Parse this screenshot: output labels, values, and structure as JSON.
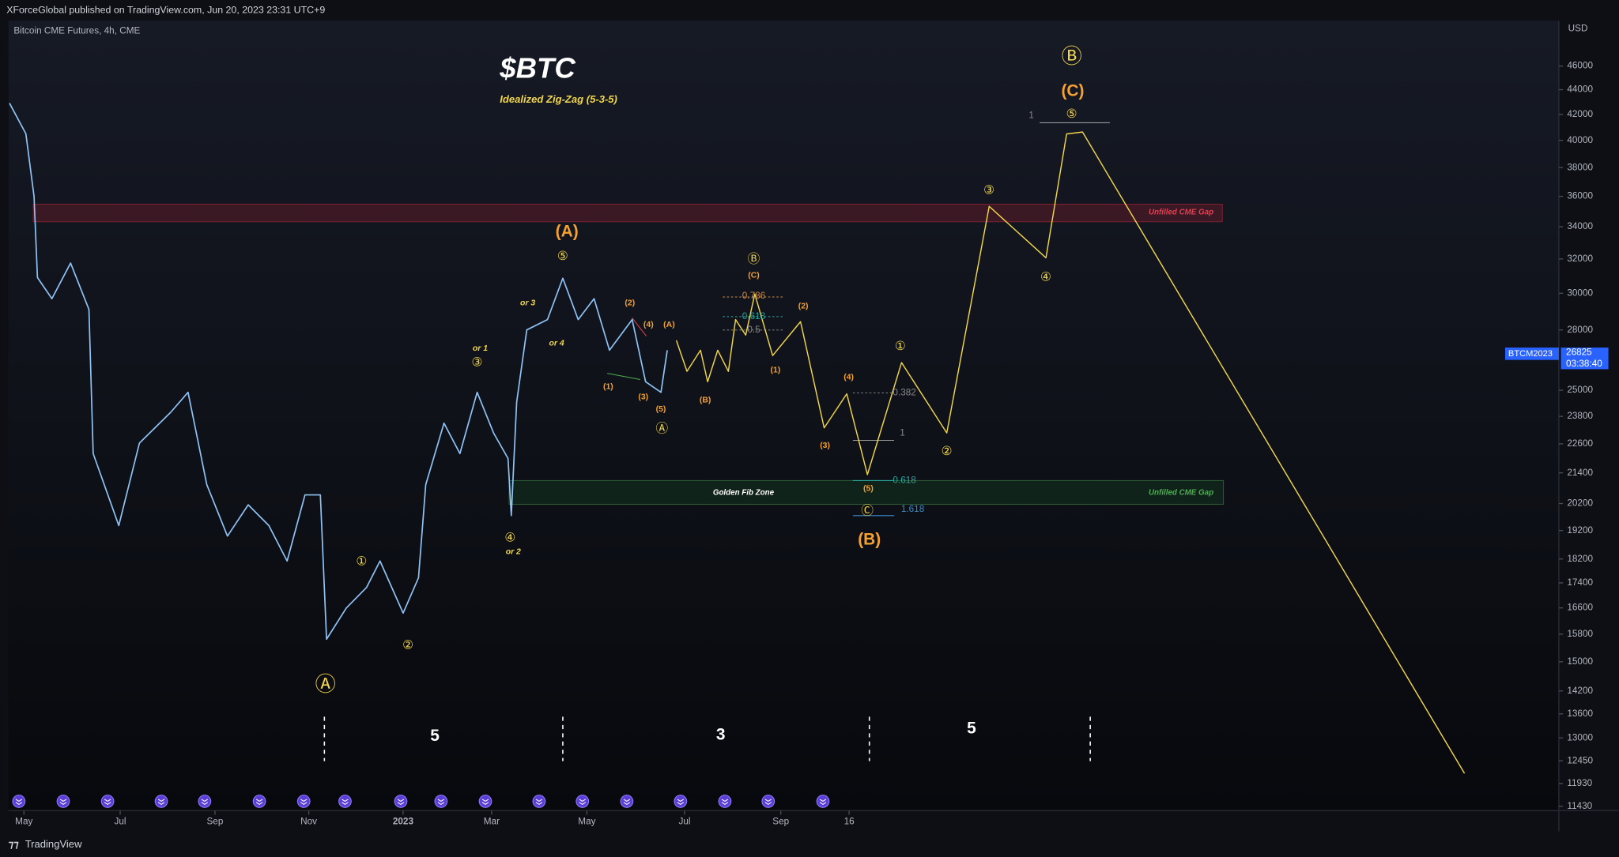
{
  "header": {
    "published": "XForceGlobal published on TradingView.com, Jun 20, 2023 23:31 UTC+9",
    "instrument": "Bitcoin CME Futures, 4h, CME",
    "currency": "USD"
  },
  "footer": {
    "brand": "TradingView"
  },
  "price_tag": {
    "symbol": "BTCM2023",
    "price": "26825",
    "countdown": "03:38:40"
  },
  "chart_data": {
    "type": "line",
    "title": "$BTC",
    "subtitle": "Idealized Zig-Zag (5-3-5)",
    "log_scale": true,
    "grid": false,
    "xlim": [
      -0.32,
      31.9
    ],
    "xticks": [
      {
        "value": 0,
        "label": "May"
      },
      {
        "value": 2.0,
        "label": "Jul"
      },
      {
        "value": 3.97,
        "label": "Sep"
      },
      {
        "value": 5.92,
        "label": "Nov"
      },
      {
        "value": 7.88,
        "label": "2023"
      },
      {
        "value": 9.72,
        "label": "Mar"
      },
      {
        "value": 11.7,
        "label": "May"
      },
      {
        "value": 13.73,
        "label": "Jul"
      },
      {
        "value": 15.73,
        "label": "Sep"
      },
      {
        "value": 17.15,
        "label": "16"
      }
    ],
    "ylim": [
      11360,
      50100
    ],
    "yticks": [
      46000,
      44000,
      42000,
      40000,
      38000,
      36000,
      34000,
      32000,
      30000,
      28000,
      25000,
      23800,
      22600,
      21400,
      20200,
      19200,
      18200,
      17400,
      16600,
      15800,
      15000,
      14200,
      13600,
      13000,
      12450,
      11930,
      11430
    ],
    "series": [
      {
        "name": "BTCM2023",
        "color": "#8fc3f5",
        "x": [
          -0.3,
          0.04,
          0.21,
          0.28,
          0.58,
          0.97,
          1.35,
          1.44,
          1.97,
          2.4,
          3.05,
          3.41,
          3.8,
          4.23,
          4.66,
          5.09,
          5.47,
          5.84,
          6.16,
          6.29,
          6.7,
          7.12,
          7.4,
          7.88,
          8.2,
          8.35,
          8.73,
          9.06,
          9.42,
          9.76,
          10.06,
          10.13,
          10.24,
          10.45,
          10.88,
          11.2,
          11.52,
          11.85,
          12.17,
          12.64,
          12.92,
          13.24,
          13.37
        ],
        "values": [
          42900,
          40500,
          36000,
          30900,
          29700,
          31750,
          29100,
          22190,
          19380,
          22630,
          23980,
          24900,
          20930,
          19000,
          20150,
          19380,
          18130,
          20530,
          20530,
          15650,
          16600,
          17250,
          18130,
          16440,
          17570,
          20930,
          23500,
          22190,
          24900,
          23070,
          21990,
          19750,
          24450,
          28000,
          28550,
          30860,
          28550,
          29700,
          26950,
          28550,
          25400,
          24900,
          26950
        ]
      },
      {
        "color": "#f2d64b",
        "x": [
          13.56,
          13.78,
          14.06,
          14.21,
          14.42,
          14.64,
          14.79,
          15.0,
          15.19,
          15.56,
          16.14,
          16.63,
          17.1,
          17.53,
          18.24,
          19.18,
          20.06,
          21.24,
          21.67,
          22.0,
          29.94
        ],
        "values": [
          27460,
          25900,
          26950,
          25400,
          26950,
          25900,
          28550,
          27730,
          29960,
          26680,
          28440,
          23290,
          24830,
          21330,
          26330,
          23070,
          35330,
          32070,
          40480,
          40630,
          12160
        ]
      }
    ],
    "annotations": [
      "Ⓐ",
      "①",
      "②",
      "③",
      "④",
      "⑤",
      "Ⓐ",
      "Ⓑ",
      "Ⓒ",
      "①",
      "②",
      "③",
      "④",
      "⑤",
      "Ⓑ",
      "(A)",
      "(C)",
      "(2)",
      "(4)",
      "(A)",
      "(1)",
      "(3)",
      "(5)",
      "(B)",
      "(1)",
      "(2)",
      "(4)",
      "(3)",
      "(5)",
      "(B)",
      "(C)",
      "or 1",
      "or 3",
      "or 4",
      "or 2",
      "0.786",
      "0.618",
      "0.5",
      "0.382",
      "1",
      "0.618",
      "1.618",
      "1",
      "Unfilled CME Gap",
      "Golden Fib Zone",
      "Unfilled CME Gap",
      "5",
      "3",
      "5"
    ]
  }
}
